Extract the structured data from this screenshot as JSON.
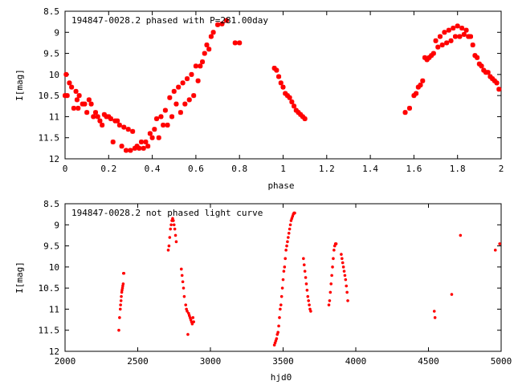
{
  "colors": {
    "points": "#ff0000",
    "axes": "#000000",
    "background": "#ffffff"
  },
  "chart_data": [
    {
      "type": "scatter",
      "title": "194847-0028.2 phased with P=281.00day",
      "xlabel": "phase",
      "ylabel": "I[mag]",
      "xlim": [
        0,
        2
      ],
      "ylim": [
        12,
        8.5
      ],
      "y_inverted": true,
      "grid": false,
      "marker": "large-cross",
      "xticks": [
        "0",
        "0.2",
        "0.4",
        "0.6",
        "0.8",
        "1",
        "1.2",
        "1.4",
        "1.6",
        "1.8",
        "2"
      ],
      "yticks": [
        "8.5",
        "9",
        "9.5",
        "10",
        "10.5",
        "11",
        "11.5",
        "12"
      ],
      "series": [
        {
          "x": [
            0.0,
            0.005,
            0.01,
            0.02,
            0.03,
            0.04,
            0.05,
            0.055,
            0.06,
            0.065,
            0.08,
            0.09,
            0.1,
            0.11,
            0.12,
            0.13,
            0.14,
            0.15,
            0.16,
            0.17,
            0.18,
            0.19,
            0.2,
            0.21,
            0.22,
            0.23,
            0.24,
            0.25,
            0.26,
            0.27,
            0.28,
            0.29,
            0.3,
            0.31,
            0.32,
            0.33,
            0.34,
            0.35,
            0.36,
            0.37,
            0.38,
            0.39,
            0.4,
            0.41,
            0.42,
            0.43,
            0.44,
            0.45,
            0.46,
            0.47,
            0.48,
            0.49,
            0.5,
            0.51,
            0.52,
            0.53,
            0.54,
            0.55,
            0.56,
            0.57,
            0.58,
            0.59,
            0.6,
            0.61,
            0.62,
            0.63,
            0.64,
            0.65,
            0.66,
            0.67,
            0.68,
            0.7,
            0.72,
            0.74,
            0.78,
            0.8,
            0.96,
            0.97,
            0.98,
            0.99,
            1.0,
            1.01,
            1.02,
            1.03,
            1.04,
            1.05,
            1.06,
            1.07,
            1.08,
            1.09,
            1.1,
            1.56,
            1.58,
            1.6,
            1.61,
            1.62,
            1.63,
            1.64,
            1.65,
            1.66,
            1.67,
            1.68,
            1.69,
            1.7,
            1.71,
            1.72,
            1.73,
            1.74,
            1.75,
            1.76,
            1.77,
            1.78,
            1.79,
            1.8,
            1.81,
            1.82,
            1.83,
            1.84,
            1.85,
            1.86,
            1.87,
            1.88,
            1.89,
            1.9,
            1.91,
            1.92,
            1.93,
            1.94,
            1.95,
            1.96,
            1.97,
            1.98,
            1.99
          ],
          "y": [
            10.5,
            10.0,
            10.5,
            10.2,
            10.3,
            10.8,
            10.4,
            10.6,
            10.8,
            10.5,
            10.7,
            10.7,
            10.9,
            10.6,
            10.7,
            11.0,
            10.9,
            11.0,
            11.1,
            11.2,
            10.95,
            11.0,
            11.0,
            11.05,
            11.6,
            11.1,
            11.1,
            11.2,
            11.7,
            11.25,
            11.8,
            11.3,
            11.8,
            11.35,
            11.75,
            11.7,
            11.75,
            11.6,
            11.75,
            11.6,
            11.7,
            11.4,
            11.5,
            11.3,
            11.05,
            11.5,
            11.0,
            11.2,
            10.85,
            11.2,
            10.55,
            11.0,
            10.4,
            10.7,
            10.3,
            10.9,
            10.2,
            10.7,
            10.1,
            10.6,
            10.0,
            10.5,
            9.8,
            10.15,
            9.8,
            9.7,
            9.5,
            9.3,
            9.4,
            9.1,
            9.0,
            8.82,
            8.8,
            8.72,
            9.25,
            9.25,
            9.85,
            9.9,
            10.05,
            10.2,
            10.3,
            10.45,
            10.5,
            10.55,
            10.65,
            10.75,
            10.85,
            10.9,
            10.95,
            11.0,
            11.05,
            10.9,
            10.8,
            10.5,
            10.45,
            10.3,
            10.25,
            10.15,
            9.6,
            9.65,
            9.6,
            9.55,
            9.5,
            9.2,
            9.35,
            9.1,
            9.3,
            9.0,
            9.25,
            8.95,
            9.2,
            8.9,
            9.1,
            8.85,
            9.1,
            8.9,
            9.05,
            8.95,
            9.1,
            9.1,
            9.3,
            9.55,
            9.6,
            9.75,
            9.8,
            9.9,
            9.95,
            9.95,
            10.05,
            10.1,
            10.15,
            10.2,
            10.35
          ]
        }
      ]
    },
    {
      "type": "scatter",
      "title": "194847-0028.2 not phased light curve",
      "xlabel": "hjd0",
      "ylabel": "I[mag]",
      "xlim": [
        2000,
        5000
      ],
      "ylim": [
        12,
        8.5
      ],
      "y_inverted": true,
      "grid": false,
      "marker": "small-dot",
      "xticks": [
        "2000",
        "2500",
        "3000",
        "3500",
        "4000",
        "4500",
        "5000"
      ],
      "yticks": [
        "8.5",
        "9",
        "9.5",
        "10",
        "10.5",
        "11",
        "11.5",
        "12"
      ],
      "series": [
        {
          "x": [
            2370,
            2375,
            2380,
            2382,
            2385,
            2387,
            2390,
            2392,
            2395,
            2397,
            2400,
            2402,
            2405,
            2710,
            2715,
            2720,
            2725,
            2730,
            2735,
            2740,
            2745,
            2750,
            2755,
            2760,
            2765,
            2800,
            2805,
            2810,
            2815,
            2820,
            2830,
            2835,
            2840,
            2845,
            2850,
            2855,
            2860,
            2865,
            2870,
            2875,
            2880,
            2885,
            3440,
            3445,
            3450,
            3455,
            3460,
            3465,
            3470,
            3475,
            3480,
            3485,
            3490,
            3495,
            3500,
            3505,
            3510,
            3515,
            3520,
            3525,
            3530,
            3535,
            3540,
            3545,
            3550,
            3555,
            3560,
            3565,
            3570,
            3575,
            3580,
            3640,
            3645,
            3650,
            3655,
            3660,
            3665,
            3670,
            3675,
            3680,
            3685,
            3690,
            3815,
            3820,
            3825,
            3830,
            3835,
            3840,
            3845,
            3850,
            3855,
            3860,
            3865,
            3900,
            3905,
            3910,
            3915,
            3920,
            3925,
            3930,
            3935,
            3940,
            3945,
            4540,
            4545,
            4660,
            4720,
            4960,
            4990
          ],
          "y": [
            11.5,
            11.2,
            11.0,
            10.9,
            10.8,
            10.7,
            10.6,
            10.55,
            10.5,
            10.45,
            10.4,
            10.15,
            10.15,
            9.6,
            9.5,
            9.3,
            9.1,
            9.0,
            8.9,
            8.85,
            8.9,
            9.0,
            9.1,
            9.25,
            9.4,
            10.05,
            10.2,
            10.35,
            10.5,
            10.7,
            10.9,
            11.0,
            11.05,
            11.6,
            11.1,
            11.15,
            11.2,
            11.25,
            11.3,
            11.35,
            11.2,
            11.3,
            11.85,
            11.8,
            11.75,
            11.7,
            11.6,
            11.55,
            11.4,
            11.2,
            11.0,
            10.9,
            10.7,
            10.5,
            10.3,
            10.1,
            10.0,
            9.8,
            9.6,
            9.5,
            9.4,
            9.3,
            9.2,
            9.1,
            9.0,
            8.9,
            8.85,
            8.8,
            8.75,
            8.72,
            8.72,
            9.8,
            9.95,
            10.1,
            10.25,
            10.4,
            10.55,
            10.7,
            10.8,
            10.9,
            11.0,
            11.05,
            10.9,
            10.8,
            10.6,
            10.4,
            10.2,
            10.0,
            9.8,
            9.6,
            9.5,
            9.45,
            9.45,
            9.7,
            9.8,
            9.9,
            10.0,
            10.1,
            10.2,
            10.3,
            10.45,
            10.6,
            10.8,
            11.05,
            11.2,
            10.65,
            9.25,
            9.6,
            9.45
          ]
        }
      ]
    }
  ]
}
